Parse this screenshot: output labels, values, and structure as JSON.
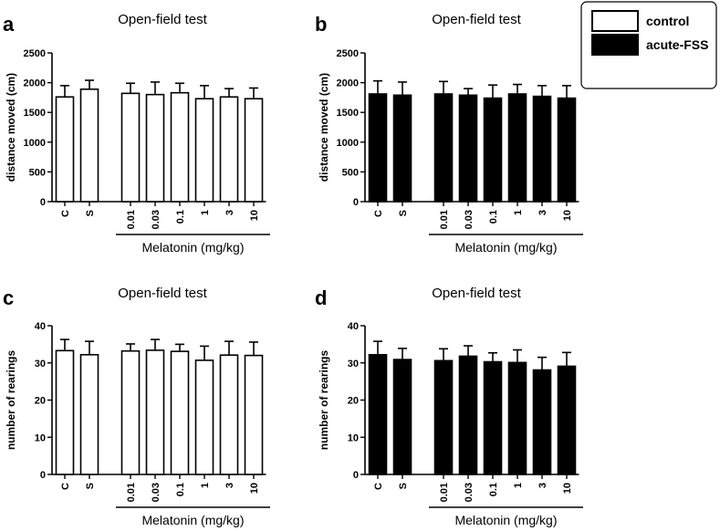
{
  "legend": [
    {
      "label": "control",
      "fill": "#ffffff"
    },
    {
      "label": "acute-FSS",
      "fill": "#000000"
    }
  ],
  "chart_data": [
    {
      "type": "bar",
      "panel": "a",
      "title": "Open-field test",
      "ylabel": "distance moved (cm)",
      "ylim": [
        0,
        2500
      ],
      "yticks": [
        0,
        500,
        1000,
        1500,
        2000,
        2500
      ],
      "categories": [
        "C",
        "S",
        "0.01",
        "0.03",
        "0.1",
        "1",
        "3",
        "10"
      ],
      "group_label": "Melatonin (mg/kg)",
      "fill": "#ffffff",
      "series": [
        {
          "values": [
            1760,
            1890,
            1820,
            1800,
            1830,
            1730,
            1760,
            1730
          ],
          "errors": [
            190,
            150,
            170,
            210,
            160,
            220,
            140,
            180
          ]
        }
      ]
    },
    {
      "type": "bar",
      "panel": "b",
      "title": "Open-field test",
      "ylabel": "distance moved (cm)",
      "ylim": [
        0,
        2500
      ],
      "yticks": [
        0,
        500,
        1000,
        1500,
        2000,
        2500
      ],
      "categories": [
        "C",
        "S",
        "0.01",
        "0.03",
        "0.1",
        "1",
        "3",
        "10"
      ],
      "group_label": "Melatonin (mg/kg)",
      "fill": "#000000",
      "series": [
        {
          "values": [
            1810,
            1790,
            1810,
            1790,
            1740,
            1810,
            1770,
            1740
          ],
          "errors": [
            220,
            220,
            210,
            110,
            220,
            160,
            180,
            210
          ]
        }
      ]
    },
    {
      "type": "bar",
      "panel": "c",
      "title": "Open-field test",
      "ylabel": "number of rearings",
      "ylim": [
        0,
        40
      ],
      "yticks": [
        0,
        10,
        20,
        30,
        40
      ],
      "categories": [
        "C",
        "S",
        "0.01",
        "0.03",
        "0.1",
        "1",
        "3",
        "10"
      ],
      "group_label": "Melatonin (mg/kg)",
      "fill": "#ffffff",
      "series": [
        {
          "values": [
            33.3,
            32.2,
            33.2,
            33.4,
            33.1,
            30.7,
            32.1,
            32.0
          ],
          "errors": [
            3.0,
            3.6,
            1.9,
            2.9,
            1.9,
            3.8,
            3.7,
            3.6
          ]
        }
      ]
    },
    {
      "type": "bar",
      "panel": "d",
      "title": "Open-field test",
      "ylabel": "number of rearings",
      "ylim": [
        0,
        40
      ],
      "yticks": [
        0,
        10,
        20,
        30,
        40
      ],
      "categories": [
        "C",
        "S",
        "0.01",
        "0.03",
        "0.1",
        "1",
        "3",
        "10"
      ],
      "group_label": "Melatonin (mg/kg)",
      "fill": "#000000",
      "series": [
        {
          "values": [
            32.2,
            30.9,
            30.6,
            31.8,
            30.3,
            30.1,
            28.1,
            29.1
          ],
          "errors": [
            3.6,
            3.0,
            3.2,
            2.8,
            2.4,
            3.4,
            3.4,
            3.7
          ]
        }
      ]
    }
  ]
}
